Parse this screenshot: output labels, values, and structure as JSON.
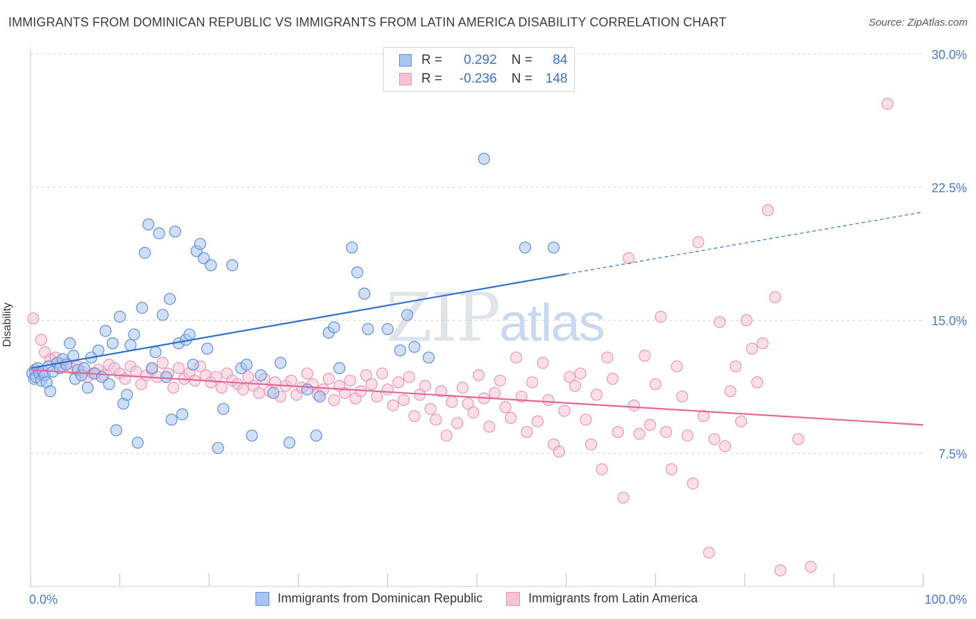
{
  "title": "IMMIGRANTS FROM DOMINICAN REPUBLIC VS IMMIGRANTS FROM LATIN AMERICA DISABILITY CORRELATION CHART",
  "source": "Source: ZipAtlas.com",
  "watermark": {
    "zip": "ZIP",
    "atlas": "atlas"
  },
  "colors": {
    "blue_fill": "#a9c4ee",
    "blue_stroke": "#5f8fd6",
    "blue_line": "#2f6fd0",
    "pink_fill": "#f6c3d5",
    "pink_stroke": "#e996b4",
    "pink_line": "#e36792",
    "grid": "#d6d6d6",
    "axis_text": "#4a78c2"
  },
  "legend": {
    "rows": [
      {
        "r_label": "R =",
        "r_value": "0.292",
        "n_label": "N =",
        "n_value": "84"
      },
      {
        "r_label": "R =",
        "r_value": "-0.236",
        "n_label": "N =",
        "n_value": "148"
      }
    ]
  },
  "bottom_legend": [
    "Immigrants from Dominican Republic",
    "Immigrants from Latin America"
  ],
  "chart_data": {
    "type": "scatter",
    "title": "IMMIGRANTS FROM DOMINICAN REPUBLIC VS IMMIGRANTS FROM LATIN AMERICA DISABILITY CORRELATION CHART",
    "xlabel": "",
    "ylabel": "Disability",
    "xlim": [
      0,
      100
    ],
    "ylim": [
      0,
      30
    ],
    "x_tick_labels": [
      "0.0%",
      "100.0%"
    ],
    "y_ticks": [
      7.5,
      15.0,
      22.5,
      30.0
    ],
    "y_tick_labels": [
      "7.5%",
      "15.0%",
      "22.5%",
      "30.0%"
    ],
    "grid": "horizontal dashed",
    "legend_position": "top-center",
    "series": [
      {
        "name": "Immigrants from Dominican Republic",
        "color": "#a9c4ee",
        "r": 0.292,
        "n": 84,
        "trend": {
          "x": [
            0,
            60,
            100
          ],
          "y": [
            12.3,
            17.6,
            21.1
          ],
          "dashed_from": 60
        },
        "points": [
          [
            0.2,
            12.0
          ],
          [
            0.4,
            11.7
          ],
          [
            0.5,
            12.2
          ],
          [
            0.6,
            11.8
          ],
          [
            0.8,
            12.3
          ],
          [
            1.0,
            12.0
          ],
          [
            1.2,
            11.6
          ],
          [
            1.4,
            12.1
          ],
          [
            1.6,
            11.9
          ],
          [
            1.8,
            11.5
          ],
          [
            2.0,
            12.4
          ],
          [
            2.2,
            11.0
          ],
          [
            2.5,
            12.1
          ],
          [
            3.0,
            12.6
          ],
          [
            3.3,
            12.3
          ],
          [
            3.6,
            12.8
          ],
          [
            4.0,
            12.5
          ],
          [
            4.4,
            13.7
          ],
          [
            4.8,
            13.0
          ],
          [
            5.0,
            11.7
          ],
          [
            5.3,
            12.2
          ],
          [
            5.7,
            11.9
          ],
          [
            6.0,
            12.3
          ],
          [
            6.4,
            11.2
          ],
          [
            6.8,
            12.9
          ],
          [
            7.2,
            12.0
          ],
          [
            7.6,
            13.3
          ],
          [
            8.0,
            11.8
          ],
          [
            8.4,
            14.4
          ],
          [
            8.8,
            11.4
          ],
          [
            9.2,
            13.7
          ],
          [
            9.6,
            8.8
          ],
          [
            10.0,
            15.2
          ],
          [
            10.4,
            10.3
          ],
          [
            10.8,
            10.8
          ],
          [
            11.2,
            13.6
          ],
          [
            11.6,
            14.2
          ],
          [
            12.0,
            8.1
          ],
          [
            12.5,
            15.7
          ],
          [
            12.8,
            18.8
          ],
          [
            13.2,
            20.4
          ],
          [
            13.6,
            12.3
          ],
          [
            14.0,
            13.2
          ],
          [
            14.4,
            19.9
          ],
          [
            14.8,
            15.3
          ],
          [
            15.2,
            11.8
          ],
          [
            15.6,
            16.2
          ],
          [
            15.8,
            9.4
          ],
          [
            16.2,
            20.0
          ],
          [
            16.6,
            13.7
          ],
          [
            17.0,
            9.7
          ],
          [
            17.4,
            13.9
          ],
          [
            17.8,
            14.2
          ],
          [
            18.2,
            12.5
          ],
          [
            18.6,
            18.9
          ],
          [
            19.0,
            19.3
          ],
          [
            19.4,
            18.5
          ],
          [
            19.8,
            13.4
          ],
          [
            20.2,
            18.1
          ],
          [
            21.0,
            7.8
          ],
          [
            21.6,
            10.0
          ],
          [
            22.6,
            18.1
          ],
          [
            23.6,
            12.3
          ],
          [
            24.2,
            12.5
          ],
          [
            24.8,
            8.5
          ],
          [
            25.8,
            11.9
          ],
          [
            27.2,
            10.9
          ],
          [
            28.0,
            12.6
          ],
          [
            29.0,
            8.1
          ],
          [
            31.0,
            11.1
          ],
          [
            32.0,
            8.5
          ],
          [
            32.4,
            10.7
          ],
          [
            33.4,
            14.3
          ],
          [
            34.0,
            14.6
          ],
          [
            34.6,
            12.3
          ],
          [
            36.0,
            19.1
          ],
          [
            36.6,
            17.7
          ],
          [
            37.4,
            16.5
          ],
          [
            37.8,
            14.5
          ],
          [
            40.0,
            14.5
          ],
          [
            41.4,
            13.3
          ],
          [
            42.2,
            15.3
          ],
          [
            43.0,
            13.5
          ],
          [
            44.6,
            12.9
          ],
          [
            50.8,
            24.1
          ],
          [
            55.4,
            19.1
          ],
          [
            58.6,
            19.1
          ]
        ]
      },
      {
        "name": "Immigrants from Latin America",
        "color": "#f6c3d5",
        "r": -0.236,
        "n": 148,
        "trend": {
          "x": [
            0,
            100
          ],
          "y": [
            12.2,
            9.1
          ]
        },
        "points": [
          [
            0.3,
            15.1
          ],
          [
            1.2,
            13.9
          ],
          [
            1.6,
            13.2
          ],
          [
            2.2,
            12.8
          ],
          [
            2.8,
            12.9
          ],
          [
            3.4,
            12.5
          ],
          [
            4.0,
            12.6
          ],
          [
            4.6,
            12.3
          ],
          [
            5.2,
            12.4
          ],
          [
            5.8,
            12.1
          ],
          [
            6.4,
            11.8
          ],
          [
            7.0,
            12.0
          ],
          [
            7.6,
            12.2
          ],
          [
            8.2,
            11.9
          ],
          [
            8.8,
            12.5
          ],
          [
            9.4,
            12.3
          ],
          [
            10.0,
            12.0
          ],
          [
            10.6,
            11.7
          ],
          [
            11.2,
            12.4
          ],
          [
            11.8,
            12.1
          ],
          [
            12.4,
            11.4
          ],
          [
            13.0,
            11.9
          ],
          [
            13.6,
            12.2
          ],
          [
            14.2,
            11.8
          ],
          [
            14.8,
            12.6
          ],
          [
            15.4,
            12.0
          ],
          [
            16.0,
            11.2
          ],
          [
            16.6,
            12.3
          ],
          [
            17.2,
            11.7
          ],
          [
            17.8,
            12.0
          ],
          [
            18.4,
            11.6
          ],
          [
            19.0,
            12.4
          ],
          [
            19.6,
            11.9
          ],
          [
            20.2,
            11.5
          ],
          [
            20.8,
            11.8
          ],
          [
            21.4,
            11.2
          ],
          [
            22.0,
            12.0
          ],
          [
            22.6,
            11.6
          ],
          [
            23.2,
            11.4
          ],
          [
            23.8,
            11.1
          ],
          [
            24.4,
            11.8
          ],
          [
            25.0,
            11.3
          ],
          [
            25.6,
            10.9
          ],
          [
            26.2,
            11.7
          ],
          [
            26.8,
            11.0
          ],
          [
            27.4,
            11.5
          ],
          [
            28.0,
            10.7
          ],
          [
            28.6,
            11.3
          ],
          [
            29.2,
            11.6
          ],
          [
            29.8,
            10.8
          ],
          [
            30.4,
            11.2
          ],
          [
            31.0,
            12.0
          ],
          [
            31.6,
            11.4
          ],
          [
            32.2,
            10.8
          ],
          [
            32.8,
            11.1
          ],
          [
            33.4,
            11.7
          ],
          [
            34.0,
            10.5
          ],
          [
            34.6,
            11.3
          ],
          [
            35.2,
            10.9
          ],
          [
            35.8,
            11.6
          ],
          [
            36.4,
            10.6
          ],
          [
            37.0,
            11.0
          ],
          [
            37.6,
            11.9
          ],
          [
            38.2,
            11.4
          ],
          [
            38.8,
            10.7
          ],
          [
            39.4,
            12.0
          ],
          [
            40.0,
            11.1
          ],
          [
            40.6,
            10.2
          ],
          [
            41.2,
            11.5
          ],
          [
            41.8,
            10.5
          ],
          [
            42.4,
            11.8
          ],
          [
            43.0,
            9.6
          ],
          [
            43.6,
            10.8
          ],
          [
            44.2,
            11.3
          ],
          [
            44.8,
            10.0
          ],
          [
            45.4,
            9.4
          ],
          [
            46.0,
            11.0
          ],
          [
            46.6,
            8.5
          ],
          [
            47.2,
            10.4
          ],
          [
            47.8,
            9.2
          ],
          [
            48.4,
            11.2
          ],
          [
            49.0,
            10.3
          ],
          [
            49.6,
            9.8
          ],
          [
            50.2,
            11.9
          ],
          [
            50.8,
            10.6
          ],
          [
            51.4,
            9.0
          ],
          [
            52.0,
            10.9
          ],
          [
            52.6,
            11.6
          ],
          [
            53.2,
            10.1
          ],
          [
            53.8,
            9.5
          ],
          [
            54.4,
            12.9
          ],
          [
            55.0,
            10.7
          ],
          [
            55.6,
            8.7
          ],
          [
            56.2,
            11.5
          ],
          [
            56.8,
            9.3
          ],
          [
            57.4,
            12.6
          ],
          [
            58.0,
            10.5
          ],
          [
            58.6,
            8.0
          ],
          [
            59.2,
            7.6
          ],
          [
            59.8,
            9.9
          ],
          [
            60.4,
            11.8
          ],
          [
            61.0,
            11.3
          ],
          [
            61.6,
            12.0
          ],
          [
            62.2,
            9.4
          ],
          [
            62.8,
            8.0
          ],
          [
            63.4,
            10.8
          ],
          [
            64.0,
            6.6
          ],
          [
            64.6,
            12.9
          ],
          [
            65.2,
            11.7
          ],
          [
            65.8,
            8.7
          ],
          [
            66.4,
            5.0
          ],
          [
            67.0,
            18.5
          ],
          [
            67.6,
            10.2
          ],
          [
            68.2,
            8.6
          ],
          [
            68.8,
            13.0
          ],
          [
            69.4,
            9.1
          ],
          [
            70.0,
            11.4
          ],
          [
            70.6,
            15.2
          ],
          [
            71.2,
            8.7
          ],
          [
            71.8,
            6.6
          ],
          [
            72.4,
            12.4
          ],
          [
            73.0,
            10.7
          ],
          [
            73.6,
            8.5
          ],
          [
            74.2,
            5.8
          ],
          [
            74.8,
            19.4
          ],
          [
            75.4,
            9.6
          ],
          [
            76.0,
            1.9
          ],
          [
            76.6,
            8.3
          ],
          [
            77.2,
            14.9
          ],
          [
            77.8,
            7.9
          ],
          [
            78.4,
            11.0
          ],
          [
            79.0,
            12.4
          ],
          [
            79.6,
            9.3
          ],
          [
            80.2,
            15.0
          ],
          [
            80.8,
            13.4
          ],
          [
            81.4,
            11.5
          ],
          [
            82.0,
            13.7
          ],
          [
            82.6,
            21.2
          ],
          [
            83.4,
            16.3
          ],
          [
            84.0,
            0.9
          ],
          [
            86.0,
            8.3
          ],
          [
            87.4,
            1.1
          ],
          [
            96.0,
            27.2
          ]
        ]
      }
    ]
  }
}
